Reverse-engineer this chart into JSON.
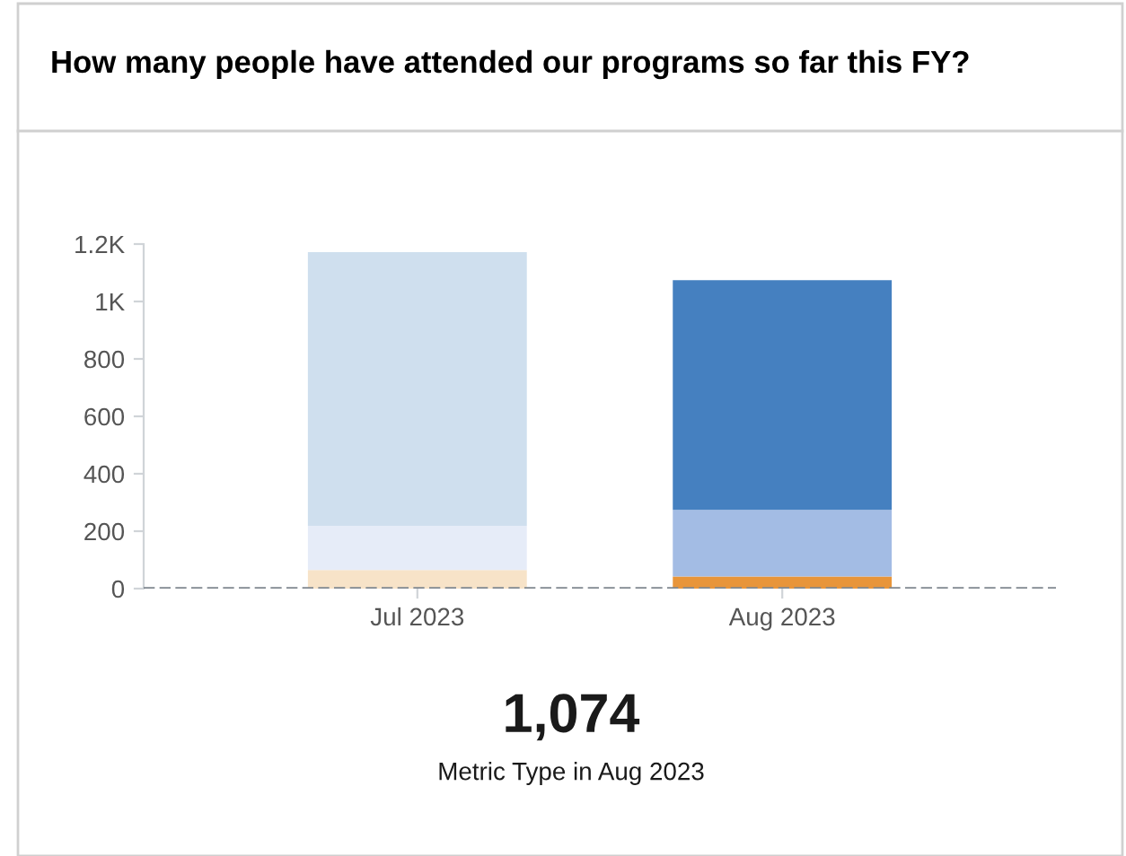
{
  "chart_data": {
    "type": "bar",
    "title": "How many people have attended our programs so far this FY?",
    "categories": [
      "Jul 2023",
      "Aug 2023"
    ],
    "stacked": true,
    "series": [
      {
        "colors": [
          "#f7e3c8",
          "#e8953a"
        ],
        "values": [
          65,
          42
        ]
      },
      {
        "colors": [
          "#e6ecf8",
          "#a3bce4"
        ],
        "values": [
          154,
          232
        ]
      },
      {
        "colors": [
          "#cfdfee",
          "#4580c0"
        ],
        "values": [
          953,
          800
        ]
      }
    ],
    "ylim": [
      0,
      1200
    ],
    "yticks": [
      0,
      200,
      400,
      600,
      800,
      {
        "value": 1000,
        "label": "1K"
      },
      {
        "value": 1200,
        "label": "1.2K"
      }
    ],
    "grid": false,
    "legend": false,
    "ref_lines": [
      {
        "axis": "y",
        "value": 0,
        "label": null,
        "color": "#808890",
        "line_style": "dashed"
      }
    ],
    "annotations": [
      "1,074",
      "Metric Type in Aug 2023"
    ]
  }
}
